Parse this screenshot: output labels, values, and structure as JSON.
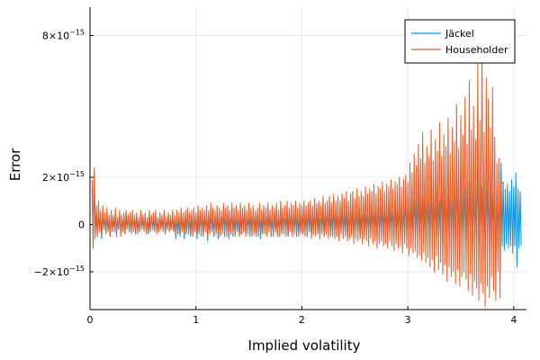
{
  "chart_data": {
    "type": "line",
    "xlabel": "Implied volatility",
    "ylabel": "Error",
    "xlim": [
      0,
      4.12
    ],
    "ylim": [
      -3.6e-15,
      9.2e-15
    ],
    "x_ticks": [
      0,
      1,
      2,
      3,
      4
    ],
    "x_tick_labels": [
      "0",
      "1",
      "2",
      "3",
      "4"
    ],
    "y_ticks": [
      -2e-15,
      0,
      2e-15,
      8e-15
    ],
    "y_tick_labels": [
      {
        "base": "−2×10",
        "exp": "−15"
      },
      {
        "base": "0",
        "exp": ""
      },
      {
        "base": "2×10",
        "exp": "−15"
      },
      {
        "base": "8×10",
        "exp": "−15"
      }
    ],
    "grid": true,
    "legend_position": "top-right",
    "series": [
      {
        "name": "Jäckel",
        "color": "#0a93e0",
        "x_start": 0.02,
        "x_step": 0.01,
        "values": [
          1.5,
          -1.0,
          2.2,
          -0.3,
          0.4,
          -0.5,
          0.5,
          -0.2,
          0.3,
          -0.6,
          0.4,
          -0.1,
          0.2,
          -0.4,
          0.3,
          -0.2,
          0.1,
          -0.5,
          0.4,
          -0.3,
          0.2,
          -0.1,
          0.3,
          -0.5,
          0.2,
          -0.2,
          0.4,
          -0.3,
          0.1,
          -0.2,
          0.3,
          -0.4,
          0.2,
          -0.1,
          0.4,
          -0.3,
          0.2,
          -0.2,
          0.3,
          -0.1,
          0.2,
          -0.4,
          0.3,
          -0.2,
          0.1,
          -0.3,
          0.4,
          -0.2,
          0.2,
          -0.1,
          0.3,
          -0.3,
          0.2,
          -0.4,
          0.1,
          -0.2,
          0.3,
          -0.2,
          0.2,
          -0.3,
          0.4,
          -0.2,
          0.1,
          -0.3,
          0.3,
          -0.2,
          0.2,
          -0.1,
          0.3,
          -0.4,
          0.2,
          -0.2,
          0.4,
          -0.3,
          0.1,
          -0.2,
          0.3,
          -0.3,
          0.2,
          -0.6,
          0.3,
          -0.4,
          0.2,
          -0.5,
          0.4,
          -0.3,
          0.2,
          -0.6,
          0.3,
          -0.4,
          0.5,
          -0.3,
          0.2,
          -0.5,
          0.3,
          -0.4,
          0.4,
          -0.2,
          0.3,
          -0.6,
          0.2,
          -0.4,
          0.5,
          -0.3,
          0.4,
          -0.5,
          0.3,
          -0.2,
          0.4,
          -0.7,
          0.3,
          -0.4,
          0.5,
          -0.3,
          0.2,
          -0.5,
          0.4,
          -0.3,
          0.3,
          -0.6,
          0.2,
          -0.4,
          0.4,
          -0.3,
          0.5,
          -0.5,
          0.3,
          -0.2,
          0.4,
          -0.6,
          0.3,
          -0.4,
          0.5,
          -0.3,
          0.2,
          -0.5,
          0.4,
          -0.3,
          0.3,
          -0.5,
          0.2,
          -0.4,
          0.4,
          -0.3,
          0.5,
          -0.4,
          0.3,
          -0.2,
          0.4,
          -0.5,
          0.3,
          -0.3,
          0.5,
          -0.4,
          0.2,
          -0.5,
          0.4,
          -0.3,
          0.3,
          -0.6,
          0.2,
          -0.4,
          0.5,
          -0.3,
          0.4,
          -0.4,
          0.3,
          -0.2,
          0.4,
          -0.5,
          0.3,
          -0.4,
          0.5,
          -0.3,
          0.2,
          -0.5,
          0.4,
          -0.3,
          0.3,
          -0.4,
          0.5,
          -0.3,
          0.4,
          -0.2,
          0.3,
          -0.5,
          0.4,
          -0.3,
          0.5,
          -0.4,
          0.3,
          -0.2,
          0.4,
          -0.5,
          0.3,
          -0.4,
          0.2,
          -0.3,
          0.5,
          -0.4,
          0.3,
          -0.2,
          0.4,
          -0.5,
          0.6,
          -0.3,
          0.4,
          -0.5,
          0.3,
          -0.4,
          0.5,
          -0.3,
          0.7,
          -0.4,
          0.3,
          -0.5,
          0.6,
          -0.3,
          0.4,
          -0.5,
          0.3,
          -0.4,
          0.6,
          -0.3,
          0.5,
          -0.4,
          0.3,
          -0.5,
          0.6,
          -0.3,
          0.4,
          -0.5,
          0.5,
          -0.4,
          0.3,
          -0.3,
          0.6,
          -0.5,
          0.4,
          -0.3,
          0.5,
          -0.6,
          0.4,
          -0.3,
          0.7,
          -0.4,
          0.5,
          -0.5,
          0.4,
          -0.3,
          0.6,
          -0.4,
          0.5,
          -0.6,
          0.3,
          -0.4,
          0.8,
          -0.5,
          0.4,
          -0.3,
          0.6,
          -0.5,
          0.5,
          -0.4,
          0.7,
          -0.3,
          0.6,
          -0.5,
          0.4,
          -0.4,
          0.8,
          -0.6,
          0.5,
          -0.3,
          0.7,
          -0.5,
          0.6,
          -0.4,
          0.5,
          -0.6,
          0.8,
          -0.4,
          0.6,
          -0.5,
          0.7,
          -0.3,
          0.9,
          -0.6,
          0.5,
          -0.4,
          0.7,
          -0.5,
          0.8,
          -0.3,
          0.6,
          -0.6,
          1.0,
          -0.4,
          0.7,
          -0.5,
          0.9,
          -0.7,
          0.6,
          -0.4,
          1.1,
          -0.6,
          0.8,
          -0.5,
          1.3,
          -0.7,
          0.9,
          -0.6,
          1.2,
          -0.8,
          1.0,
          -0.5,
          1.4,
          -0.9,
          1.1,
          -0.7,
          1.5,
          -0.8,
          1.2,
          -0.6,
          1.3,
          -0.9,
          1.6,
          -0.7,
          1.0,
          -0.8,
          2.6,
          -1.0,
          1.3,
          -0.8,
          1.6,
          -0.9,
          1.2,
          -0.7,
          1.8,
          -1.0,
          1.4,
          -0.8,
          1.5,
          -0.6,
          1.9,
          -1.0,
          1.3,
          -0.9,
          1.7,
          -0.8,
          1.2,
          -0.7,
          1.6,
          -1.1,
          1.4,
          -0.9,
          1.8,
          -0.8,
          1.3,
          -1.0,
          1.7,
          -0.7,
          1.5,
          -0.9,
          2.6,
          -1.1,
          1.4,
          -0.8,
          1.6,
          -0.9,
          1.2,
          -1.0,
          1.8,
          -0.8,
          1.5,
          -0.7,
          1.6,
          -1.0,
          1.3,
          -0.9,
          1.7,
          -1.8,
          1.4,
          -0.8,
          1.6,
          -1.0,
          2.6,
          -0.9,
          1.8,
          -1.1,
          1.5,
          -0.8,
          1.7,
          -1.0,
          1.4,
          -0.9,
          1.9,
          -1.2,
          1.6,
          -0.9,
          2.2,
          -1.8,
          1.5,
          -1.0,
          1.4,
          -0.9
        ]
      },
      {
        "name": "Householder",
        "color": "#e2602b",
        "x_start": 0.02,
        "x_step": 0.01,
        "values": [
          1.9,
          -1.0,
          2.4,
          -0.6,
          0.8,
          -0.4,
          1.0,
          -0.3,
          0.6,
          -0.5,
          0.8,
          -0.2,
          0.5,
          -0.4,
          0.7,
          -0.3,
          0.4,
          -0.5,
          0.6,
          -0.2,
          0.4,
          -0.3,
          0.7,
          -0.4,
          0.3,
          -0.2,
          0.6,
          -0.5,
          0.4,
          -0.3,
          0.5,
          -0.4,
          0.6,
          -0.2,
          0.4,
          -0.3,
          0.5,
          -0.4,
          0.6,
          -0.3,
          0.4,
          -0.2,
          0.5,
          -0.4,
          0.3,
          -0.3,
          0.6,
          -0.2,
          0.4,
          -0.3,
          0.5,
          -0.4,
          0.3,
          -0.2,
          0.6,
          -0.3,
          0.4,
          -0.2,
          0.5,
          -0.3,
          0.6,
          -0.4,
          0.3,
          -0.3,
          0.5,
          -0.2,
          0.4,
          -0.3,
          0.6,
          -0.4,
          0.3,
          -0.2,
          0.5,
          -0.3,
          0.4,
          -0.2,
          0.6,
          -0.3,
          0.4,
          -0.4,
          0.6,
          -0.3,
          0.5,
          -0.4,
          0.7,
          -0.3,
          0.5,
          -0.4,
          0.6,
          -0.3,
          0.7,
          -0.4,
          0.5,
          -0.3,
          0.6,
          -0.5,
          0.7,
          -0.3,
          0.5,
          -0.4,
          0.8,
          -0.3,
          0.6,
          -0.5,
          0.7,
          -0.4,
          0.6,
          -0.3,
          0.8,
          -0.5,
          0.6,
          -0.4,
          0.9,
          -0.3,
          0.7,
          -0.5,
          0.6,
          -0.4,
          0.8,
          -0.3,
          0.7,
          -0.5,
          0.6,
          -0.4,
          0.9,
          -0.3,
          0.7,
          -0.5,
          0.8,
          -0.4,
          0.6,
          -0.3,
          0.9,
          -0.5,
          0.7,
          -0.4,
          0.8,
          -0.3,
          0.6,
          -0.5,
          0.9,
          -0.4,
          0.7,
          -0.3,
          0.8,
          -0.5,
          0.6,
          -0.4,
          0.9,
          -0.3,
          0.7,
          -0.5,
          0.8,
          -0.4,
          0.6,
          -0.3,
          0.7,
          -0.5,
          0.9,
          -0.4,
          0.6,
          -0.3,
          0.8,
          -0.4,
          0.7,
          -0.5,
          0.9,
          -0.3,
          0.6,
          -0.4,
          0.8,
          -0.5,
          0.7,
          -0.3,
          0.9,
          -0.4,
          0.6,
          -0.5,
          1.0,
          -0.3,
          0.7,
          -0.4,
          0.8,
          -0.5,
          1.0,
          -0.4,
          0.7,
          -0.3,
          0.9,
          -0.5,
          0.8,
          -0.4,
          1.0,
          -0.3,
          0.7,
          -0.5,
          0.9,
          -0.4,
          0.8,
          -0.3,
          1.0,
          -0.5,
          0.8,
          -0.4,
          0.9,
          -0.3,
          1.0,
          -0.6,
          0.8,
          -0.4,
          1.1,
          -0.5,
          0.9,
          -0.3,
          1.0,
          -0.6,
          0.8,
          -0.4,
          1.2,
          -0.5,
          0.9,
          -0.4,
          1.0,
          -0.6,
          1.2,
          -0.5,
          0.9,
          -0.4,
          1.3,
          -0.6,
          1.0,
          -0.5,
          1.2,
          -0.7,
          1.0,
          -0.4,
          1.3,
          -0.6,
          1.1,
          -0.5,
          1.4,
          -0.7,
          1.0,
          -0.6,
          1.3,
          -0.5,
          1.4,
          -0.8,
          1.1,
          -0.6,
          1.5,
          -0.7,
          1.2,
          -0.5,
          1.4,
          -0.8,
          1.2,
          -0.6,
          1.6,
          -0.7,
          1.3,
          -0.9,
          1.5,
          -0.6,
          1.4,
          -0.8,
          1.7,
          -0.7,
          1.3,
          -1.0,
          1.6,
          -0.8,
          1.5,
          -0.7,
          1.8,
          -0.9,
          1.4,
          -0.8,
          1.7,
          -1.0,
          1.6,
          -0.7,
          1.9,
          -0.9,
          1.5,
          -1.1,
          1.8,
          -0.8,
          1.7,
          -1.0,
          2.0,
          -0.9,
          1.6,
          -1.2,
          1.9,
          -0.8,
          2.1,
          -1.0,
          1.8,
          -1.3,
          2.6,
          -1.0,
          2.2,
          -1.2,
          3.0,
          -1.1,
          2.5,
          -1.4,
          3.4,
          -1.3,
          2.8,
          -1.5,
          3.9,
          -1.2,
          2.6,
          -1.6,
          3.3,
          -1.4,
          2.9,
          -1.8,
          4.0,
          -1.5,
          2.7,
          -2.0,
          3.6,
          -1.3,
          3.1,
          -1.9,
          4.3,
          -1.6,
          2.9,
          -2.1,
          3.8,
          -1.7,
          3.3,
          -2.4,
          4.5,
          -1.8,
          3.0,
          -2.2,
          4.1,
          -2.0,
          3.5,
          -2.5,
          5.1,
          -1.9,
          3.2,
          -2.6,
          4.6,
          -2.2,
          3.8,
          -2.0,
          5.4,
          -2.3,
          3.4,
          -2.8,
          6.1,
          -2.1,
          4.0,
          -3.0,
          5.0,
          -2.4,
          3.6,
          -2.7,
          6.8,
          -3.2,
          4.4,
          -2.5,
          7.6,
          -2.9,
          3.9,
          -3.5,
          6.2,
          -2.6,
          5.3,
          -3.1,
          4.1,
          -2.2,
          5.8,
          -2.8,
          3.7,
          -3.2,
          2.6,
          -2.0,
          2.8,
          -3.1,
          1.8,
          1.8,
          1.7
        ]
      }
    ]
  }
}
